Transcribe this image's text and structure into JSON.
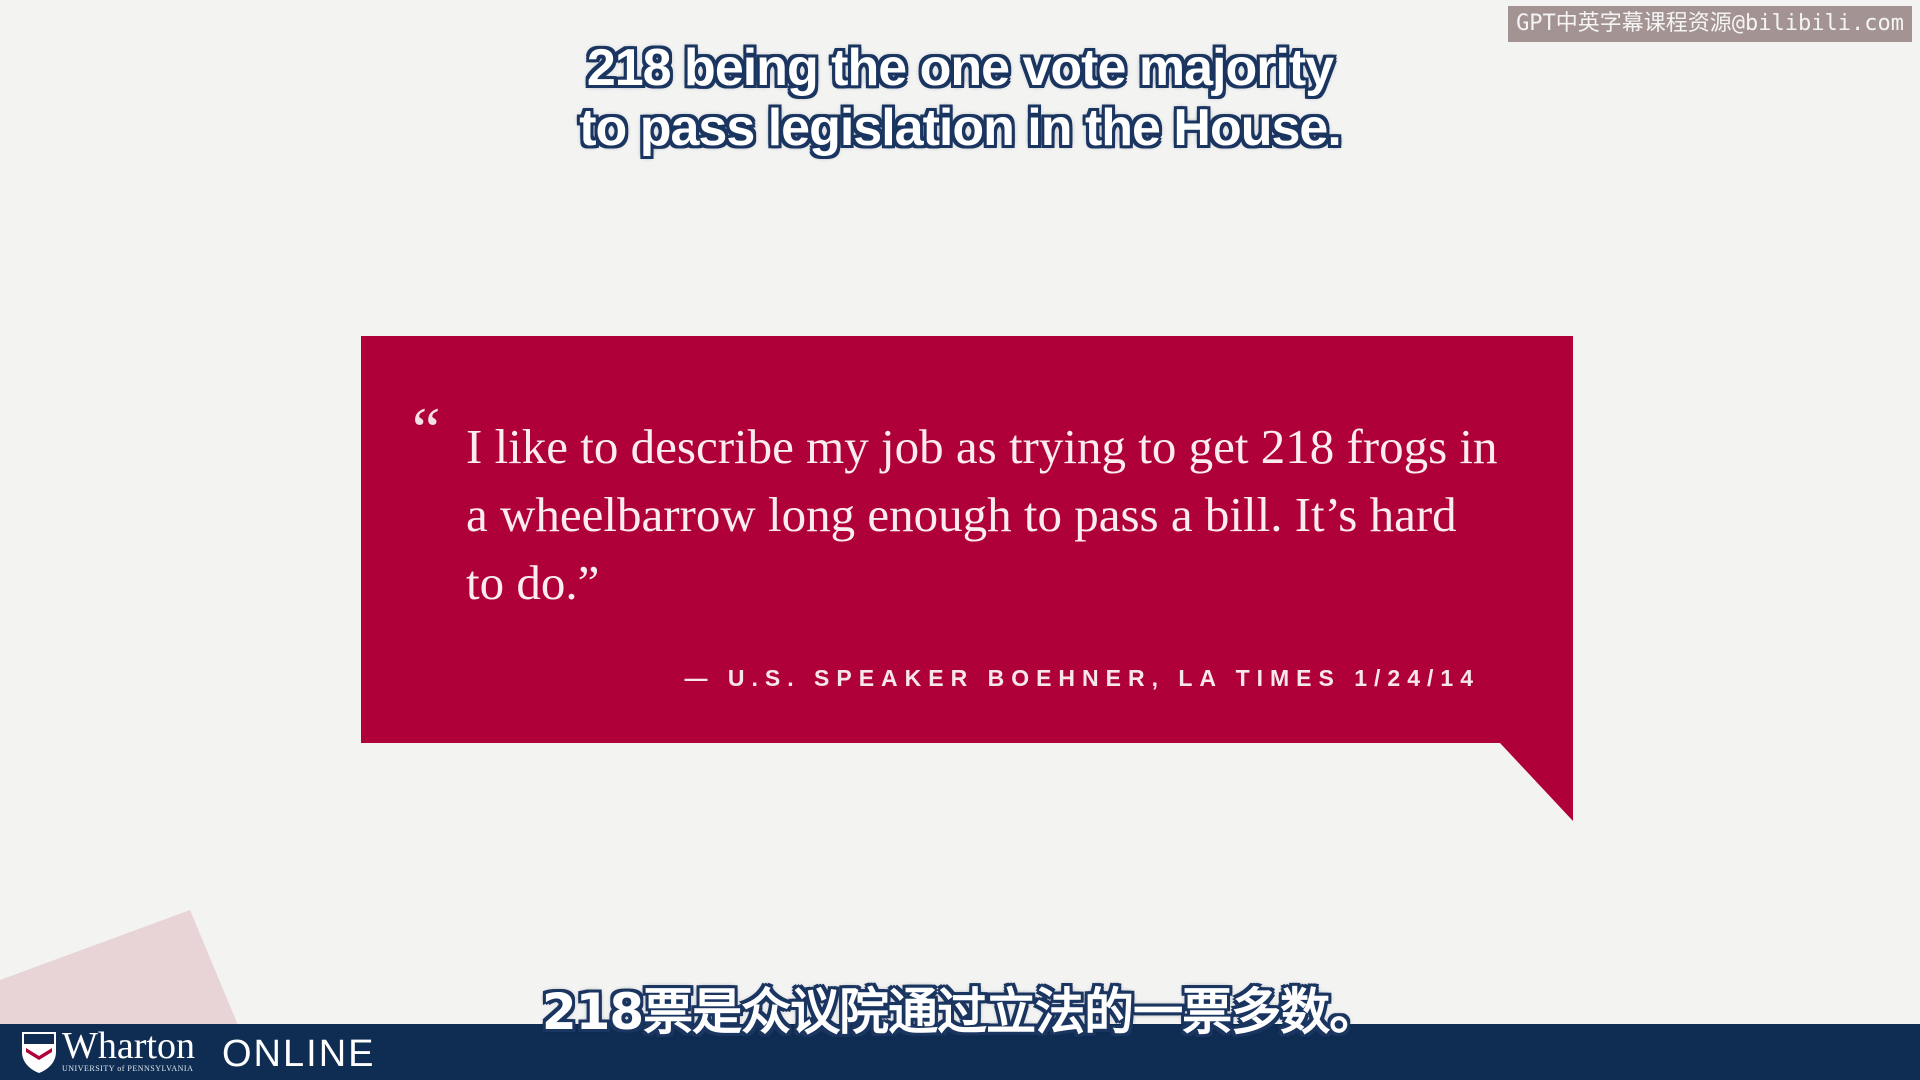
{
  "watermark": "GPT中英字幕课程资源@bilibili.com",
  "subtitle_en": {
    "line1": "218 being the one vote majority",
    "line2": "to pass legislation in the House."
  },
  "subtitle_zh": "218票是众议院通过立法的一票多数。",
  "quote": {
    "open_mark": "“",
    "text": "I like to describe my job as trying to get 218 frogs in a wheelbarrow long enough to pass a bill. It’s hard to do.”",
    "attribution": "— U.S. SPEAKER BOEHNER, LA TIMES 1/24/14"
  },
  "branding": {
    "name": "Wharton",
    "sub": "UNIVERSITY of PENNSYLVANIA",
    "online": "ONLINE"
  },
  "colors": {
    "accent": "#b0003a",
    "footer": "#0f2d52",
    "background": "#f3f3f2"
  }
}
